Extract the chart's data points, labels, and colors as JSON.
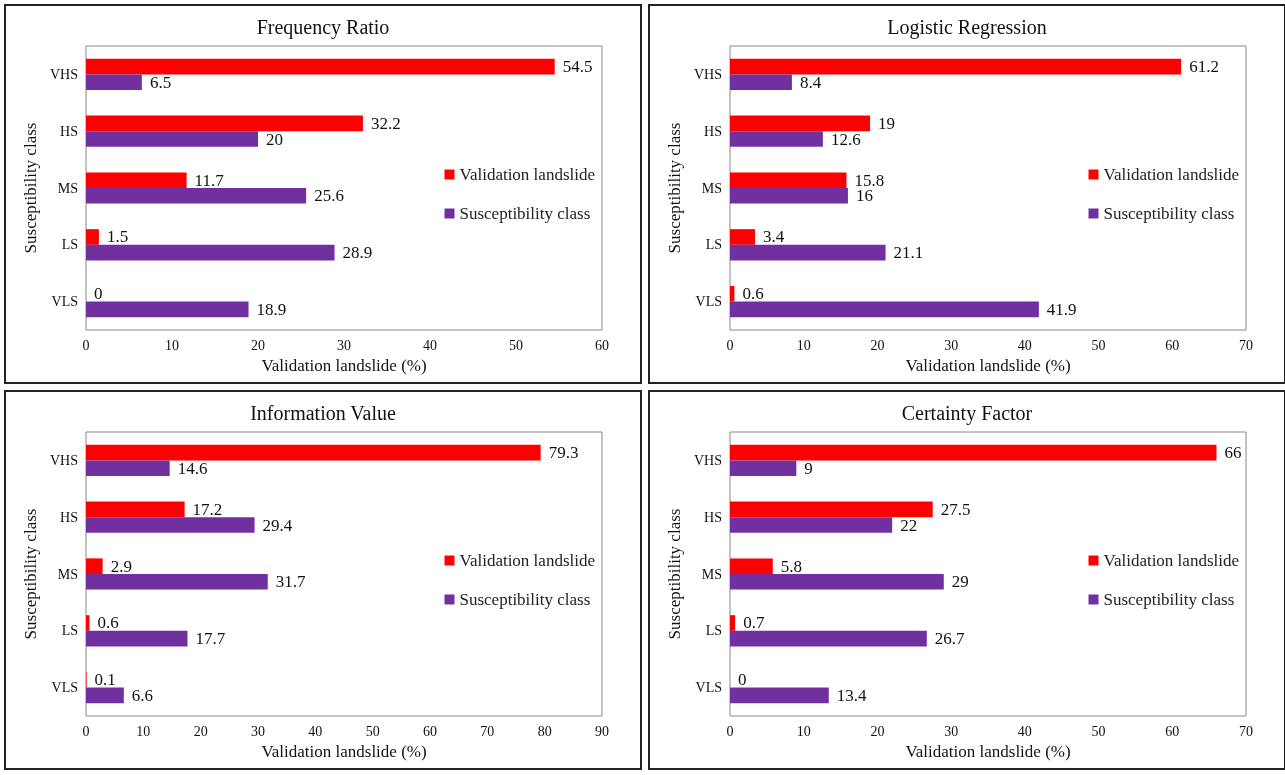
{
  "chart_data": [
    {
      "type": "bar",
      "orientation": "horizontal",
      "title": "Frequency Ratio",
      "xlabel": "Validation landslide (%)",
      "ylabel": "Susceptibility class",
      "categories": [
        "VHS",
        "HS",
        "MS",
        "LS",
        "VLS"
      ],
      "series": [
        {
          "name": "Validation landslide",
          "color": "#ff0000",
          "values": [
            54.5,
            32.2,
            11.7,
            1.5,
            0
          ]
        },
        {
          "name": "Susceptibility class",
          "color": "#7030a0",
          "values": [
            6.5,
            20,
            25.6,
            28.9,
            18.9
          ]
        }
      ],
      "xlim": [
        0,
        60
      ],
      "xticks": [
        0,
        10,
        20,
        30,
        40,
        50,
        60
      ],
      "data_labels": true,
      "legend": "right",
      "grid": false
    },
    {
      "type": "bar",
      "orientation": "horizontal",
      "title": "Logistic Regression",
      "xlabel": "Validation landslide (%)",
      "ylabel": "Susceptibility class",
      "categories": [
        "VHS",
        "HS",
        "MS",
        "LS",
        "VLS"
      ],
      "series": [
        {
          "name": "Validation landslide",
          "color": "#ff0000",
          "values": [
            61.2,
            19,
            15.8,
            3.4,
            0.6
          ]
        },
        {
          "name": "Susceptibility class",
          "color": "#7030a0",
          "values": [
            8.4,
            12.6,
            16,
            21.1,
            41.9
          ]
        }
      ],
      "xlim": [
        0,
        70
      ],
      "xticks": [
        0,
        10,
        20,
        30,
        40,
        50,
        60,
        70
      ],
      "data_labels": true,
      "legend": "right",
      "grid": false
    },
    {
      "type": "bar",
      "orientation": "horizontal",
      "title": "Information Value",
      "xlabel": "Validation landslide (%)",
      "ylabel": "Susceptibility class",
      "categories": [
        "VHS",
        "HS",
        "MS",
        "LS",
        "VLS"
      ],
      "series": [
        {
          "name": "Validation landslide",
          "color": "#ff0000",
          "values": [
            79.3,
            17.2,
            2.9,
            0.6,
            0.1
          ]
        },
        {
          "name": "Susceptibility class",
          "color": "#7030a0",
          "values": [
            14.6,
            29.4,
            31.7,
            17.7,
            6.6
          ]
        }
      ],
      "xlim": [
        0,
        90
      ],
      "xticks": [
        0,
        10,
        20,
        30,
        40,
        50,
        60,
        70,
        80,
        90
      ],
      "data_labels": true,
      "legend": "right",
      "grid": false
    },
    {
      "type": "bar",
      "orientation": "horizontal",
      "title": "Certainty Factor",
      "xlabel": "Validation landslide (%)",
      "ylabel": "Susceptibility class",
      "categories": [
        "VHS",
        "HS",
        "MS",
        "LS",
        "VLS"
      ],
      "series": [
        {
          "name": "Validation landslide",
          "color": "#ff0000",
          "values": [
            66,
            27.5,
            5.8,
            0.7,
            0
          ]
        },
        {
          "name": "Susceptibility class",
          "color": "#7030a0",
          "values": [
            9,
            22,
            29,
            26.7,
            13.4
          ]
        }
      ],
      "xlim": [
        0,
        70
      ],
      "xticks": [
        0,
        10,
        20,
        30,
        40,
        50,
        60,
        70
      ],
      "data_labels": true,
      "legend": "right",
      "grid": false
    }
  ]
}
